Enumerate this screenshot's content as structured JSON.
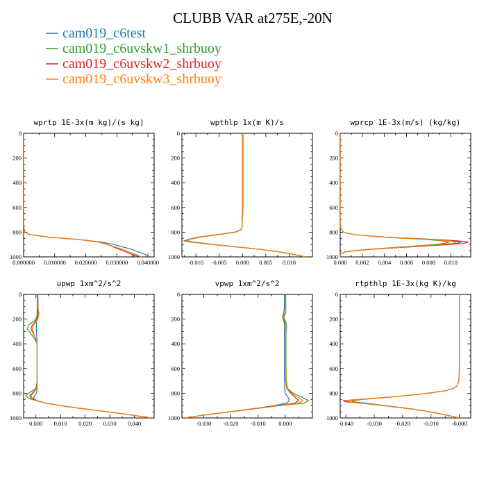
{
  "figure": {
    "title": "CLUBB VAR at275E,-20N"
  },
  "legend": [
    {
      "name": "cam019_c6test",
      "color": "#1f77b4"
    },
    {
      "name": "cam019_c6uvskw1_shrbuoy",
      "color": "#2ca02c"
    },
    {
      "name": "cam019_c6uvskw2_shrbuoy",
      "color": "#d62728"
    },
    {
      "name": "cam019_c6uvskw3_shrbuoy",
      "color": "#ff7f0e"
    }
  ],
  "chart_data": [
    {
      "type": "line",
      "title": "wprtp  1E-3x(m kg)/(s kg)",
      "xlim": [
        0.0,
        0.042
      ],
      "ylim": [
        1000,
        0
      ],
      "xticks": [
        "0.000000",
        "0.010000",
        "0.020000",
        "0.030000",
        "0.040000"
      ],
      "xtick_values": [
        0.0,
        0.01,
        0.02,
        0.03,
        0.04
      ],
      "yticks": [
        "0",
        "200",
        "400",
        "600",
        "800",
        "1000"
      ],
      "ytick_values": [
        0,
        200,
        400,
        600,
        800,
        1000
      ],
      "y": [
        0,
        200,
        400,
        600,
        760,
        800,
        820,
        840,
        860,
        880,
        900,
        920,
        940,
        960,
        980,
        1000
      ],
      "series": [
        {
          "color": "#1f77b4",
          "values": [
            0.0,
            0.0,
            0.0,
            0.0,
            0.0,
            0.0005,
            0.002,
            0.008,
            0.018,
            0.025,
            0.029,
            0.032,
            0.035,
            0.037,
            0.039,
            0.0405
          ]
        },
        {
          "color": "#2ca02c",
          "values": [
            0.0,
            0.0,
            0.0,
            0.0,
            0.0,
            0.0005,
            0.002,
            0.008,
            0.018,
            0.024,
            0.027,
            0.029,
            0.031,
            0.033,
            0.035,
            0.036
          ]
        },
        {
          "color": "#d62728",
          "values": [
            0.0,
            0.0,
            0.0,
            0.0,
            0.0,
            0.0005,
            0.002,
            0.008,
            0.018,
            0.024,
            0.027,
            0.029,
            0.031,
            0.033,
            0.035,
            0.0375
          ]
        },
        {
          "color": "#ff7f0e",
          "values": [
            0.0,
            0.0,
            0.0,
            0.0,
            0.0,
            0.0005,
            0.002,
            0.008,
            0.018,
            0.024,
            0.027,
            0.0295,
            0.032,
            0.034,
            0.036,
            0.038
          ]
        }
      ]
    },
    {
      "type": "line",
      "title": "wpthlp  1x(m K)/s",
      "xlim": [
        -0.013,
        0.015
      ],
      "ylim": [
        1000,
        0
      ],
      "xticks": [
        "-0.010",
        "-0.005",
        "0.000",
        "0.005",
        "0.010"
      ],
      "xtick_values": [
        -0.01,
        -0.005,
        0.0,
        0.005,
        0.01
      ],
      "yticks": [
        "0",
        "200",
        "400",
        "600",
        "800",
        "1000"
      ],
      "ytick_values": [
        0,
        200,
        400,
        600,
        800,
        1000
      ],
      "y": [
        0,
        200,
        400,
        600,
        760,
        780,
        800,
        820,
        840,
        860,
        870,
        880,
        900,
        920,
        940,
        960,
        980,
        1000
      ],
      "series": [
        {
          "color": "#1f77b4",
          "values": [
            0.0,
            0.0,
            0.0,
            0.0,
            -0.0001,
            -0.0003,
            -0.0015,
            -0.005,
            -0.009,
            -0.0115,
            -0.0118,
            -0.0105,
            -0.006,
            -0.001,
            0.004,
            0.008,
            0.011,
            0.0135
          ]
        },
        {
          "color": "#2ca02c",
          "values": [
            0.0001,
            0.0001,
            0.0001,
            0.0001,
            -0.0001,
            -0.0004,
            -0.0017,
            -0.0055,
            -0.0095,
            -0.0118,
            -0.0125,
            -0.0112,
            -0.0065,
            -0.0012,
            0.004,
            0.008,
            0.011,
            0.0135
          ]
        },
        {
          "color": "#d62728",
          "values": [
            0.0,
            0.0,
            0.0,
            0.0,
            -0.0001,
            -0.0003,
            -0.0016,
            -0.0052,
            -0.0093,
            -0.0118,
            -0.0123,
            -0.011,
            -0.0063,
            -0.0011,
            0.004,
            0.008,
            0.011,
            0.0135
          ]
        },
        {
          "color": "#ff7f0e",
          "values": [
            0.0,
            0.0,
            0.0,
            0.0,
            -0.0001,
            -0.0003,
            -0.0016,
            -0.0052,
            -0.0093,
            -0.0117,
            -0.0121,
            -0.0108,
            -0.0062,
            -0.0011,
            0.004,
            0.008,
            0.011,
            0.0135
          ]
        }
      ]
    },
    {
      "type": "line",
      "title": "wprcp  1E-3x(m/s) (kg/kg)",
      "xlim": [
        0.0,
        0.0118
      ],
      "ylim": [
        1000,
        0
      ],
      "xticks": [
        "0.000",
        "0.002",
        "0.004",
        "0.006",
        "0.008",
        "0.010"
      ],
      "xtick_values": [
        0.0,
        0.002,
        0.004,
        0.006,
        0.008,
        0.01
      ],
      "yticks": [
        "0",
        "200",
        "400",
        "600",
        "800",
        "1000"
      ],
      "ytick_values": [
        0,
        200,
        400,
        600,
        800,
        1000
      ],
      "y": [
        0,
        200,
        400,
        600,
        760,
        800,
        820,
        840,
        860,
        870,
        880,
        890,
        900,
        920,
        940,
        960,
        980,
        1000
      ],
      "series": [
        {
          "color": "#1f77b4",
          "values": [
            0.0,
            0.0,
            0.0,
            0.0,
            0.0,
            0.0003,
            0.0012,
            0.004,
            0.0085,
            0.0102,
            0.0109,
            0.0106,
            0.0095,
            0.006,
            0.0025,
            0.0004,
            0.0,
            0.0
          ]
        },
        {
          "color": "#2ca02c",
          "values": [
            0.0,
            0.0,
            0.0,
            0.0,
            0.0,
            0.0003,
            0.0012,
            0.0038,
            0.0078,
            0.0092,
            0.0098,
            0.0095,
            0.0085,
            0.0055,
            0.0023,
            0.0004,
            0.0,
            0.0
          ]
        },
        {
          "color": "#d62728",
          "values": [
            0.0,
            0.0,
            0.0,
            0.0,
            0.0,
            0.0003,
            0.0012,
            0.004,
            0.0088,
            0.0106,
            0.0116,
            0.0112,
            0.0099,
            0.0062,
            0.0026,
            0.0004,
            0.0,
            0.0
          ]
        },
        {
          "color": "#ff7f0e",
          "values": [
            0.0,
            0.0,
            0.0,
            0.0,
            0.0,
            0.0003,
            0.0012,
            0.0039,
            0.0082,
            0.0098,
            0.0105,
            0.0102,
            0.009,
            0.0058,
            0.0024,
            0.0004,
            0.0,
            0.0
          ]
        }
      ]
    },
    {
      "type": "line",
      "title": "upwp  1xm^2/s^2",
      "xlim": [
        -0.005,
        0.048
      ],
      "ylim": [
        1000,
        0
      ],
      "xticks": [
        "0.000",
        "0.010",
        "0.020",
        "0.030",
        "0.040"
      ],
      "xtick_values": [
        0.0,
        0.01,
        0.02,
        0.03,
        0.04
      ],
      "yticks": [
        "0",
        "200",
        "400",
        "600",
        "800",
        "1000"
      ],
      "ytick_values": [
        0,
        200,
        400,
        600,
        800,
        1000
      ],
      "y": [
        0,
        100,
        150,
        200,
        250,
        280,
        320,
        360,
        400,
        500,
        600,
        700,
        760,
        800,
        820,
        840,
        860,
        880,
        900,
        920,
        940,
        960,
        980,
        1000
      ],
      "series": [
        {
          "color": "#1f77b4",
          "values": [
            0.0005,
            0.0005,
            0.0005,
            0.0004,
            0.0002,
            0.0002,
            0.0003,
            0.0004,
            0.0005,
            0.0005,
            0.0005,
            0.0005,
            0.0005,
            0.0003,
            -0.0005,
            -0.001,
            0.0005,
            0.004,
            0.01,
            0.017,
            0.025,
            0.033,
            0.04,
            0.047
          ]
        },
        {
          "color": "#2ca02c",
          "values": [
            0.0008,
            0.0008,
            0.0008,
            0.0,
            -0.003,
            -0.0035,
            -0.002,
            -0.0005,
            0.0005,
            0.0005,
            0.0005,
            0.0005,
            0.0,
            -0.003,
            -0.004,
            -0.003,
            0.0,
            0.004,
            0.01,
            0.017,
            0.025,
            0.033,
            0.04,
            0.047
          ]
        },
        {
          "color": "#d62728",
          "values": [
            0.0008,
            0.0008,
            0.001,
            0.0005,
            -0.0015,
            -0.002,
            -0.001,
            0.0,
            0.0005,
            0.0005,
            0.0005,
            0.0005,
            0.0003,
            -0.0015,
            -0.0025,
            -0.002,
            0.0002,
            0.004,
            0.01,
            0.017,
            0.025,
            0.033,
            0.04,
            0.047
          ]
        },
        {
          "color": "#ff7f0e",
          "values": [
            0.0008,
            0.0008,
            0.0012,
            0.0008,
            -0.001,
            -0.0015,
            -0.0008,
            0.0,
            0.0005,
            0.0005,
            0.0005,
            0.0005,
            0.0004,
            -0.001,
            -0.002,
            -0.0015,
            0.0003,
            0.004,
            0.01,
            0.017,
            0.025,
            0.033,
            0.04,
            0.047
          ]
        }
      ]
    },
    {
      "type": "line",
      "title": "vpwp  1xm^2/s^2",
      "xlim": [
        -0.038,
        0.01
      ],
      "ylim": [
        1000,
        0
      ],
      "xticks": [
        "-0.030",
        "-0.020",
        "-0.010",
        "0.000"
      ],
      "xtick_values": [
        -0.03,
        -0.02,
        -0.01,
        0.0
      ],
      "yticks": [
        "0",
        "200",
        "400",
        "600",
        "800",
        "1000"
      ],
      "ytick_values": [
        0,
        200,
        400,
        600,
        800,
        1000
      ],
      "y": [
        0,
        100,
        150,
        180,
        200,
        220,
        260,
        300,
        400,
        500,
        600,
        700,
        760,
        800,
        830,
        860,
        880,
        900,
        920,
        940,
        960,
        980,
        1000
      ],
      "series": [
        {
          "color": "#1f77b4",
          "values": [
            -0.0003,
            -0.0003,
            -0.0005,
            -0.001,
            -0.0008,
            -0.0004,
            -0.0003,
            -0.0003,
            -0.0003,
            -0.0003,
            -0.0003,
            -0.0003,
            -0.0002,
            0.0,
            0.001,
            0.0015,
            0.0005,
            -0.004,
            -0.01,
            -0.017,
            -0.024,
            -0.031,
            -0.037
          ]
        },
        {
          "color": "#2ca02c",
          "values": [
            0.0002,
            0.0002,
            0.0002,
            -0.0005,
            -0.0003,
            0.0002,
            0.0005,
            0.0003,
            0.0003,
            0.0003,
            0.0003,
            0.0004,
            0.0008,
            0.003,
            0.006,
            0.0085,
            0.007,
            -0.002,
            -0.009,
            -0.016,
            -0.024,
            -0.031,
            -0.037
          ]
        },
        {
          "color": "#d62728",
          "values": [
            0.0,
            0.0,
            0.0,
            -0.0008,
            -0.0006,
            -0.0001,
            0.0002,
            0.0001,
            0.0001,
            0.0001,
            0.0001,
            0.0002,
            0.0005,
            0.002,
            0.0035,
            0.005,
            0.0035,
            -0.003,
            -0.0095,
            -0.0165,
            -0.024,
            -0.031,
            -0.037
          ]
        },
        {
          "color": "#ff7f0e",
          "values": [
            0.0001,
            0.0001,
            0.0001,
            -0.0007,
            -0.0005,
            0.0,
            0.0003,
            0.0002,
            0.0002,
            0.0002,
            0.0002,
            0.0003,
            0.0006,
            0.0025,
            0.0045,
            0.0065,
            0.005,
            -0.0025,
            -0.0092,
            -0.0162,
            -0.024,
            -0.031,
            -0.037
          ]
        }
      ]
    },
    {
      "type": "line",
      "title": "rtpthlp  1E-3x(kg K)/kg",
      "xlim": [
        -0.042,
        0.004
      ],
      "ylim": [
        1000,
        0
      ],
      "xticks": [
        "-0.040",
        "-0.030",
        "-0.020",
        "-0.010",
        "-0.000"
      ],
      "xtick_values": [
        -0.04,
        -0.03,
        -0.02,
        -0.01,
        0.0
      ],
      "yticks": [
        "0",
        "200",
        "400",
        "600",
        "800",
        "1000"
      ],
      "ytick_values": [
        0,
        200,
        400,
        600,
        800,
        1000
      ],
      "y": [
        0,
        200,
        400,
        600,
        700,
        740,
        760,
        780,
        800,
        820,
        840,
        850,
        860,
        870,
        880,
        900,
        920,
        940,
        960,
        980,
        1000
      ],
      "series": [
        {
          "color": "#1f77b4",
          "values": [
            0.0,
            0.0,
            0.0,
            0.0,
            -0.0002,
            -0.0008,
            -0.002,
            -0.005,
            -0.011,
            -0.019,
            -0.029,
            -0.034,
            -0.038,
            -0.037,
            -0.033,
            -0.026,
            -0.019,
            -0.013,
            -0.008,
            -0.004,
            0.0
          ]
        },
        {
          "color": "#2ca02c",
          "values": [
            0.0,
            0.0,
            0.0,
            0.0,
            -0.0002,
            -0.0008,
            -0.002,
            -0.005,
            -0.011,
            -0.019,
            -0.029,
            -0.035,
            -0.0395,
            -0.0385,
            -0.034,
            -0.0265,
            -0.019,
            -0.013,
            -0.008,
            -0.004,
            0.0
          ]
        },
        {
          "color": "#d62728",
          "values": [
            0.0,
            0.0,
            0.0,
            0.0,
            -0.0002,
            -0.0008,
            -0.002,
            -0.005,
            -0.011,
            -0.019,
            -0.029,
            -0.0355,
            -0.041,
            -0.04,
            -0.035,
            -0.027,
            -0.0195,
            -0.0133,
            -0.0082,
            -0.0041,
            0.0
          ]
        },
        {
          "color": "#ff7f0e",
          "values": [
            0.0,
            0.0,
            0.0,
            0.0,
            -0.0002,
            -0.0008,
            -0.002,
            -0.005,
            -0.011,
            -0.019,
            -0.029,
            -0.035,
            -0.04,
            -0.039,
            -0.0345,
            -0.0268,
            -0.0192,
            -0.0131,
            -0.0081,
            -0.004,
            0.0
          ]
        }
      ]
    }
  ]
}
